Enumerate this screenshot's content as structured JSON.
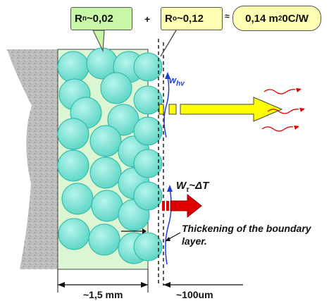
{
  "callouts": {
    "rn": {
      "symbol": "R",
      "sub": "п",
      "value": "~0,02"
    },
    "ro": {
      "symbol": "R",
      "sub": "o",
      "value": "~0,12"
    },
    "total": {
      "value": "0,14 m",
      "sup": "2",
      "unit": "0C/W"
    }
  },
  "operators": {
    "plus": "+",
    "approx": "≈"
  },
  "labels": {
    "w_hv": {
      "symbol": "w",
      "sub": "hv"
    },
    "w_tau": {
      "symbol": "W",
      "sub": "τ",
      "rest": "~ΔT"
    },
    "boundary_line1": "Thickening of the boundary",
    "boundary_line2": "layer."
  },
  "dimensions": {
    "thickness": "~1,5 mm",
    "boundary": "~100um"
  },
  "colors": {
    "wall": "#bdbdbd",
    "insulation": "#dcf5d2",
    "sphere": "#7de6d6",
    "yellow_arrow": "#ffff00",
    "red_arrow": "#ff0000",
    "flow_line": "#1a3fd6"
  }
}
